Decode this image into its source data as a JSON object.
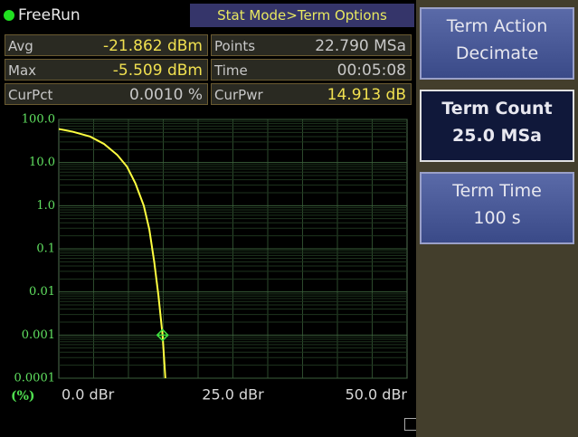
{
  "header": {
    "status": "FreeRun",
    "menu_path": "Stat Mode>Term Options"
  },
  "readouts": [
    {
      "label": "Avg",
      "value": "-21.862 dBm"
    },
    {
      "label": "Points",
      "value": "22.790 MSa"
    },
    {
      "label": "Max",
      "value": "-5.509 dBm"
    },
    {
      "label": "Time",
      "value": "00:05:08"
    },
    {
      "label": "CurPct",
      "value": "0.0010 %"
    },
    {
      "label": "CurPwr",
      "value": "14.913 dB"
    }
  ],
  "plot": {
    "type": "line",
    "y_unit": "(%)",
    "log_scale": true,
    "grid": true,
    "color": "#ffff40",
    "ylim": [
      0.0001,
      100
    ],
    "yticks": [
      {
        "value": 100,
        "label": "100.0"
      },
      {
        "value": 10,
        "label": "10.0"
      },
      {
        "value": 1,
        "label": "1.0"
      },
      0.1,
      0.01,
      0.001,
      0.0001
    ],
    "xlim": [
      0,
      50
    ],
    "xticks": [
      {
        "value": 0,
        "label": "0.0 dBr"
      },
      {
        "value": 25,
        "label": "25.0 dBr"
      },
      {
        "value": 50,
        "label": "50.0 dBr"
      }
    ],
    "x": [
      0,
      2,
      4.5,
      6.5,
      8.4,
      9.8,
      11,
      12.2,
      13,
      13.7,
      14.3,
      14.9,
      15.3
    ],
    "values": [
      60,
      52,
      40,
      27,
      15,
      8,
      3.3,
      1,
      0.28,
      0.05,
      0.0084,
      0.001,
      0.0001
    ],
    "marker": {
      "x": 14.9,
      "value": 0.001
    }
  },
  "softkeys": [
    {
      "title": "Term Action",
      "value": "Decimate",
      "selected": false
    },
    {
      "title": "Term Count",
      "value": "25.0 MSa",
      "selected": true
    },
    {
      "title": "Term Time",
      "value": "100 s",
      "selected": false
    }
  ]
}
